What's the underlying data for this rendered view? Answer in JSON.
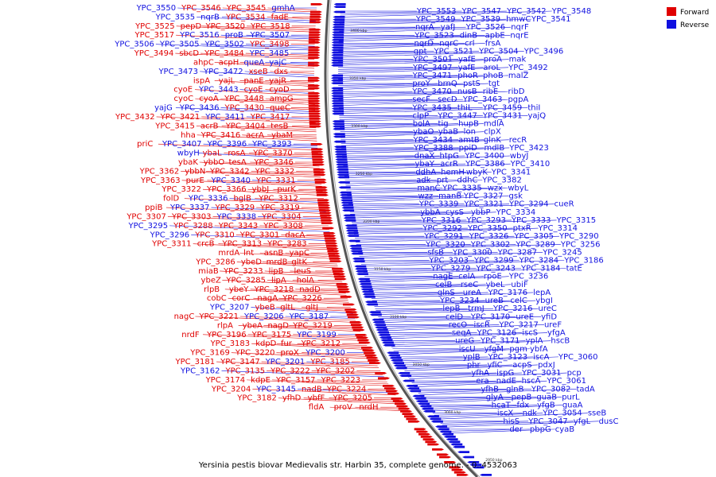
{
  "caption": "Yersinia pestis biovar Medievalis str. Harbin 35, complete genome. - 0..4532063",
  "legend": {
    "forward_label": "Forward",
    "reverse_label": "Reverse",
    "forward_color": "#e00000",
    "reverse_color": "#1010e0"
  },
  "coordinate_labels": [
    "3400 kbp",
    "3350 kbp",
    "3300 kbp",
    "3250 kbp",
    "3200 kbp",
    "3150 kbp",
    "3100 kbp",
    "3050 kbp",
    "3000 kbp",
    "2950 kbp"
  ],
  "left_labels": [
    {
      "t": "YPC_3550",
      "s": "r"
    },
    {
      "t": "YPC_3546",
      "s": "f"
    },
    {
      "t": "YPC_3545",
      "s": "f"
    },
    {
      "t": "gmhA",
      "s": "r"
    },
    {
      "t": "YPC_3535",
      "s": "r"
    },
    {
      "t": "nqrB",
      "s": "r"
    },
    {
      "t": "YPC_3534",
      "s": "f"
    },
    {
      "t": "fadE",
      "s": "f"
    },
    {
      "t": "YPC_3525",
      "s": "f"
    },
    {
      "t": "pepD",
      "s": "f"
    },
    {
      "t": "YPC_3520",
      "s": "f"
    },
    {
      "t": "YPC_3518",
      "s": "f"
    },
    {
      "t": "YPC_3517",
      "s": "f"
    },
    {
      "t": "YPC_3516",
      "s": "r"
    },
    {
      "t": "proB",
      "s": "r"
    },
    {
      "t": "YPC_3507",
      "s": "r"
    },
    {
      "t": "YPC_3506",
      "s": "r"
    },
    {
      "t": "YPC_3505",
      "s": "r"
    },
    {
      "t": "YPC_3502",
      "s": "r"
    },
    {
      "t": "YPC_3498",
      "s": "f"
    },
    {
      "t": "YPC_3494",
      "s": "f"
    },
    {
      "t": "sbcD",
      "s": "f"
    },
    {
      "t": "YPC_3484",
      "s": "f"
    },
    {
      "t": "YPC_3485",
      "s": "r"
    },
    {
      "t": "ahpC",
      "s": "f"
    },
    {
      "t": "acpH",
      "s": "f"
    },
    {
      "t": "queA",
      "s": "r"
    },
    {
      "t": "yajC",
      "s": "r"
    },
    {
      "t": "YPC_3473",
      "s": "r"
    },
    {
      "t": "YPC_3472",
      "s": "r"
    },
    {
      "t": "xseB",
      "s": "f"
    },
    {
      "t": "dxs",
      "s": "f"
    },
    {
      "t": "ispA",
      "s": "f"
    },
    {
      "t": "yajL",
      "s": "f"
    },
    {
      "t": "panE",
      "s": "f"
    },
    {
      "t": "yajR",
      "s": "f"
    },
    {
      "t": "cyoE",
      "s": "f"
    },
    {
      "t": "YPC_3443",
      "s": "r"
    },
    {
      "t": "cyoE",
      "s": "f"
    },
    {
      "t": "cyoD",
      "s": "f"
    },
    {
      "t": "cyoC",
      "s": "f"
    },
    {
      "t": "cyoA",
      "s": "f"
    },
    {
      "t": "YPC_3448",
      "s": "f"
    },
    {
      "t": "ampG",
      "s": "f"
    },
    {
      "t": "yajG",
      "s": "r"
    },
    {
      "t": "YPC_3436",
      "s": "r"
    },
    {
      "t": "YPC_3430",
      "s": "f"
    },
    {
      "t": "queC",
      "s": "f"
    },
    {
      "t": "YPC_3432",
      "s": "f"
    },
    {
      "t": "YPC_3421",
      "s": "f"
    },
    {
      "t": "YPC_3411",
      "s": "r"
    },
    {
      "t": "YPC_3417",
      "s": "f"
    },
    {
      "t": "YPC_3415",
      "s": "f"
    },
    {
      "t": "acrB",
      "s": "f"
    },
    {
      "t": "YPC_3404",
      "s": "f"
    },
    {
      "t": "tesB",
      "s": "f"
    },
    {
      "t": "hha",
      "s": "f"
    },
    {
      "t": "YPC_3416",
      "s": "f"
    },
    {
      "t": "acrA",
      "s": "f"
    },
    {
      "t": "ybaM",
      "s": "f"
    },
    {
      "t": "priC",
      "s": "f"
    },
    {
      "t": "YPC_3407",
      "s": "r"
    },
    {
      "t": "YPC_3396",
      "s": "r"
    },
    {
      "t": "YPC_3393",
      "s": "r"
    },
    {
      "t": "wbyH",
      "s": "r"
    },
    {
      "t": "ybaL",
      "s": "f"
    },
    {
      "t": "rosA",
      "s": "f"
    },
    {
      "t": "YPC_3370",
      "s": "f"
    },
    {
      "t": "ybaK",
      "s": "f"
    },
    {
      "t": "ybbO",
      "s": "f"
    },
    {
      "t": "tesA",
      "s": "f"
    },
    {
      "t": "YPC_3346",
      "s": "f"
    },
    {
      "t": "YPC_3362",
      "s": "f"
    },
    {
      "t": "ybbN",
      "s": "f"
    },
    {
      "t": "YPC_3342",
      "s": "f"
    },
    {
      "t": "YPC_3332",
      "s": "f"
    },
    {
      "t": "YPC_3363",
      "s": "f"
    },
    {
      "t": "purE",
      "s": "f"
    },
    {
      "t": "YPC_3340",
      "s": "r"
    },
    {
      "t": "YPC_3331",
      "s": "f"
    },
    {
      "t": "YPC_3322",
      "s": "f"
    },
    {
      "t": "YPC_3366",
      "s": "f"
    },
    {
      "t": "ybbJ",
      "s": "f"
    },
    {
      "t": "purK",
      "s": "f"
    },
    {
      "t": "folD",
      "s": "f"
    },
    {
      "t": "YPC_3336",
      "s": "r"
    },
    {
      "t": "bglB",
      "s": "f"
    },
    {
      "t": "YPC_3312",
      "s": "f"
    },
    {
      "t": "ppiB",
      "s": "f"
    },
    {
      "t": "YPC_3337",
      "s": "r"
    },
    {
      "t": "YPC_3329",
      "s": "f"
    },
    {
      "t": "YPC_3319",
      "s": "f"
    },
    {
      "t": "YPC_3307",
      "s": "f"
    },
    {
      "t": "YPC_3303",
      "s": "f"
    },
    {
      "t": "YPC_3338",
      "s": "r"
    },
    {
      "t": "YPC_3304",
      "s": "f"
    },
    {
      "t": "YPC_3295",
      "s": "r"
    },
    {
      "t": "YPC_3288",
      "s": "f"
    },
    {
      "t": "YPC_3343",
      "s": "f"
    },
    {
      "t": "YPC_3308",
      "s": "f"
    },
    {
      "t": "YPC_3296",
      "s": "r"
    },
    {
      "t": "YPC_3310",
      "s": "f"
    },
    {
      "t": "YPC_3301",
      "s": "f"
    },
    {
      "t": "dacA",
      "s": "f"
    },
    {
      "t": "YPC_3311",
      "s": "f"
    },
    {
      "t": "crcB",
      "s": "f"
    },
    {
      "t": "YPC_3313",
      "s": "f"
    },
    {
      "t": "YPC_3283",
      "s": "f"
    },
    {
      "t": "mrdA",
      "s": "f"
    },
    {
      "t": "lnt",
      "s": "f"
    },
    {
      "t": "asnB",
      "s": "f"
    },
    {
      "t": "yapC",
      "s": "f"
    },
    {
      "t": "YPC_3286",
      "s": "f"
    },
    {
      "t": "ybeD",
      "s": "f"
    },
    {
      "t": "mrdB",
      "s": "f"
    },
    {
      "t": "gltK",
      "s": "f"
    },
    {
      "t": "miaB",
      "s": "f"
    },
    {
      "t": "YPC_3233",
      "s": "f"
    },
    {
      "t": "lipB",
      "s": "f"
    },
    {
      "t": "leuS",
      "s": "f"
    },
    {
      "t": "ybeZ",
      "s": "f"
    },
    {
      "t": "YPC_3285",
      "s": "f"
    },
    {
      "t": "lipA",
      "s": "f"
    },
    {
      "t": "holA",
      "s": "f"
    },
    {
      "t": "rlpB",
      "s": "f"
    },
    {
      "t": "ybeY",
      "s": "f"
    },
    {
      "t": "YPC_3218",
      "s": "f"
    },
    {
      "t": "nadD",
      "s": "f"
    },
    {
      "t": "cobC",
      "s": "f"
    },
    {
      "t": "corC",
      "s": "f"
    },
    {
      "t": "nagA",
      "s": "f"
    },
    {
      "t": "YPC_3226",
      "s": "f"
    },
    {
      "t": "YPC_3207",
      "s": "r"
    },
    {
      "t": "ybeB",
      "s": "f"
    },
    {
      "t": "gltL",
      "s": "f"
    },
    {
      "t": "gltJ",
      "s": "f"
    },
    {
      "t": "nagC",
      "s": "f"
    },
    {
      "t": "YPC_3221",
      "s": "f"
    },
    {
      "t": "YPC_3206",
      "s": "r"
    },
    {
      "t": "YPC_3187",
      "s": "r"
    },
    {
      "t": "rlpA",
      "s": "f"
    },
    {
      "t": "ybeA",
      "s": "f"
    },
    {
      "t": "nagD",
      "s": "f"
    },
    {
      "t": "YPC_3219",
      "s": "f"
    },
    {
      "t": "nrdF",
      "s": "f"
    },
    {
      "t": "YPC_3196",
      "s": "f"
    },
    {
      "t": "YPC_3175",
      "s": "f"
    },
    {
      "t": "YPC_3199",
      "s": "r"
    },
    {
      "t": "YPC_3183",
      "s": "f"
    },
    {
      "t": "kdpD",
      "s": "f"
    },
    {
      "t": "fur",
      "s": "f"
    },
    {
      "t": "YPC_3212",
      "s": "f"
    },
    {
      "t": "YPC_3169",
      "s": "f"
    },
    {
      "t": "YPC_3220",
      "s": "f"
    },
    {
      "t": "proX",
      "s": "f"
    },
    {
      "t": "YPC_3200",
      "s": "r"
    },
    {
      "t": "YPC_3181",
      "s": "f"
    },
    {
      "t": "YPC_3147",
      "s": "f"
    },
    {
      "t": "YPC_3201",
      "s": "r"
    },
    {
      "t": "YPC_3185",
      "s": "f"
    },
    {
      "t": "YPC_3162",
      "s": "r"
    },
    {
      "t": "YPC_3135",
      "s": "f"
    },
    {
      "t": "YPC_3222",
      "s": "f"
    },
    {
      "t": "YPC_3202",
      "s": "f"
    },
    {
      "t": "YPC_3174",
      "s": "f"
    },
    {
      "t": "kdpE",
      "s": "f"
    },
    {
      "t": "YPC_3157",
      "s": "f"
    },
    {
      "t": "YPC_3223",
      "s": "f"
    },
    {
      "t": "YPC_3204",
      "s": "f"
    },
    {
      "t": "YPC_3145",
      "s": "r"
    },
    {
      "t": "nadB",
      "s": "f"
    },
    {
      "t": "YPC_3224",
      "s": "f"
    },
    {
      "t": "YPC_3182",
      "s": "f"
    },
    {
      "t": "yfhD",
      "s": "f"
    },
    {
      "t": "ybfF",
      "s": "f"
    },
    {
      "t": "YPC_3205",
      "s": "f"
    },
    {
      "t": "fldA",
      "s": "f"
    },
    {
      "t": "proV",
      "s": "f"
    },
    {
      "t": "nrdH",
      "s": "f"
    }
  ],
  "right_labels": [
    "YPC_3553",
    "YPC_3547",
    "YPC_3542",
    "YPC_3548",
    "YPC_3549",
    "YPC_3539",
    "hmwC",
    "YPC_3541",
    "nqrA",
    "yafJ",
    "YPC_3526",
    "nqrF",
    "YPC_3523",
    "dinB",
    "apbE",
    "nqrE",
    "nqrD",
    "nqrC",
    "crl",
    "frsA",
    "gpt",
    "YPC_3521",
    "YPC_3504",
    "YPC_3496",
    "YPC_3501",
    "yafE",
    "proA",
    "mak",
    "YPC_3497",
    "yafE",
    "aroL",
    "YPC_3492",
    "YPC_3471",
    "phoR",
    "phoB",
    "malZ",
    "proY",
    "brnQ",
    "pstS",
    "tgt",
    "YPC_3470",
    "nusB",
    "ribE",
    "ribD",
    "secF",
    "secD",
    "YPC_3463",
    "pgpA",
    "YPC_3435",
    "thiL",
    "YPC_3459",
    "thiI",
    "clpP",
    "YPC_3447",
    "YPC_3431",
    "yajQ",
    "bolA",
    "tig",
    "hupB",
    "mdlA",
    "ybaO",
    "ybaB",
    "lon",
    "clpX",
    "YPC_3434",
    "amtB",
    "glnK",
    "recR",
    "YPC_3388",
    "ppiD",
    "mdlB",
    "YPC_3423",
    "dnaX",
    "htpG",
    "YPC_3400",
    "wbyJ",
    "ybaY",
    "acrR",
    "YPC_3386",
    "YPC_3410",
    "ddhA",
    "hemH",
    "wbyK",
    "YPC_3341",
    "adk",
    "prt",
    "ddhC",
    "YPC_3382",
    "manC",
    "YPC_3335",
    "wzx",
    "wbyL",
    "wzz",
    "manB",
    "YPC_3327",
    "gsk",
    "YPC_3339",
    "YPC_3321",
    "YPC_3294",
    "cueR",
    "ybbA",
    "cysS",
    "ybbP",
    "YPC_3334",
    "YPC_3316",
    "YPC_3293",
    "YPC_3333",
    "YPC_3315",
    "YPC_3292",
    "YPC_3350",
    "ptxR",
    "YPC_3314",
    "YPC_3291",
    "YPC_3326",
    "YPC_3305",
    "YPC_3290",
    "YPC_3320",
    "YPC_3302",
    "YPC_3289",
    "YPC_3256",
    "sfsB",
    "YPC_3300",
    "YPC_3287",
    "YPC_3245",
    "YPC_3203",
    "YPC_3299",
    "YPC_3284",
    "YPC_3186",
    "YPC_3279",
    "YPC_3243",
    "YPC_3184",
    "tatE",
    "nagE",
    "celA",
    "rpoE",
    "YPC_3236",
    "celB",
    "rseC",
    "ybeL",
    "ubiF",
    "glnS",
    "ureA",
    "YPC_3176",
    "lepA",
    "YPC_3234",
    "ureB",
    "celC",
    "ybgI",
    "lepB",
    "trmJ",
    "YPC_3216",
    "ureC",
    "celD",
    "YPC_3170",
    "ureE",
    "yfiD",
    "recO",
    "iscR",
    "YPC_3217",
    "ureF",
    "seqA",
    "YPC_3126",
    "iscS",
    "yfgA",
    "ureG",
    "YPC_3171",
    "yplA",
    "hscB",
    "iscU",
    "yfgM",
    "pgm",
    "ybfA",
    "yplB",
    "YPC_3123",
    "iscA",
    "YPC_3060",
    "phr",
    "yfiC",
    "acpS",
    "pdxJ",
    "yfhA",
    "ispG",
    "YPC_3031",
    "pcp",
    "era",
    "nadE",
    "hscA",
    "YPC_3061",
    "yfhB",
    "glnB",
    "YPC_3082",
    "tadA",
    "glyA",
    "pepB",
    "guaB",
    "purL",
    "hcaT",
    "fdx",
    "yfgB",
    "guaA",
    "iscX",
    "ndk",
    "YPC_3054",
    "sseB",
    "hisS",
    "YPC_3047",
    "yfgL",
    "dusC",
    "der",
    "pbpG",
    "cyaB"
  ]
}
